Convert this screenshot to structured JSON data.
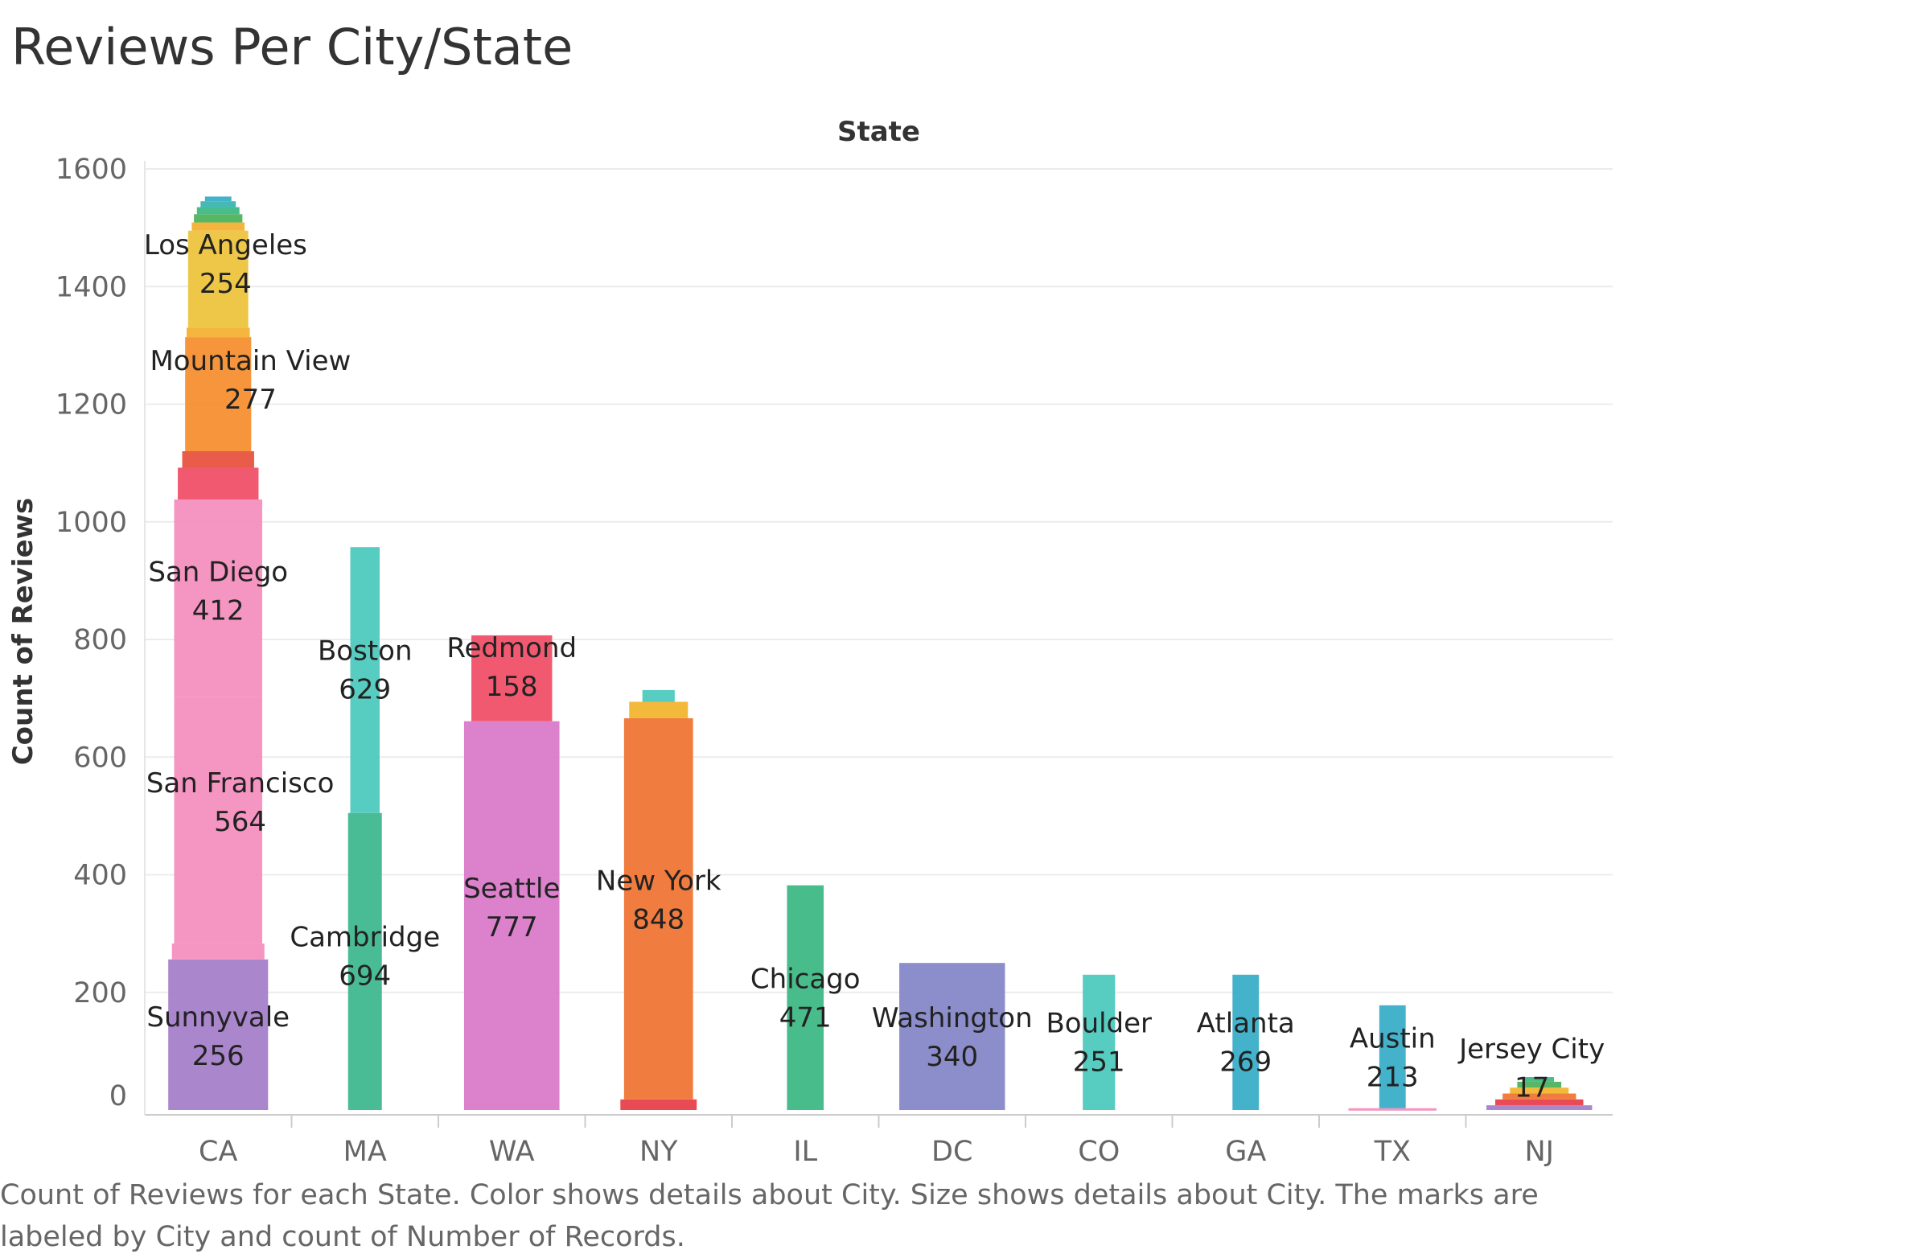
{
  "title": "Reviews Per City/State",
  "caption": "Count of Reviews for each State.  Color shows details about City.  Size shows details about City.  The marks are labeled by City and count of Number of Records.",
  "chart_data": {
    "type": "bar",
    "stacked": true,
    "column_header": "State",
    "ylabel": "Count of Reviews",
    "ylim": [
      0,
      1650
    ],
    "yticks": [
      0,
      200,
      400,
      600,
      800,
      1000,
      1200,
      1400,
      1600
    ],
    "grid": true,
    "categories": [
      "CA",
      "MA",
      "WA",
      "NY",
      "IL",
      "DC",
      "CO",
      "GA",
      "TX",
      "NJ"
    ],
    "segments": [
      {
        "state": "CA",
        "base": 0,
        "value": 256,
        "size": 0.68,
        "color": "#a57fc9",
        "city": "Sunnyvale",
        "count": "256"
      },
      {
        "state": "CA",
        "base": 256,
        "value": 27,
        "size": 0.63,
        "color": "#f48fbe",
        "city": "",
        "count": ""
      },
      {
        "state": "CA",
        "base": 283,
        "value": 419,
        "size": 0.6,
        "color": "#f48fbe",
        "city": "San Francisco",
        "count": "564"
      },
      {
        "state": "CA",
        "base": 702,
        "value": 336,
        "size": 0.6,
        "color": "#f48fbe",
        "city": "San Diego",
        "count": "412"
      },
      {
        "state": "CA",
        "base": 1038,
        "value": 54,
        "size": 0.55,
        "color": "#f05068",
        "city": "",
        "count": ""
      },
      {
        "state": "CA",
        "base": 1092,
        "value": 28,
        "size": 0.49,
        "color": "#e7533f",
        "city": "",
        "count": ""
      },
      {
        "state": "CA",
        "base": 1120,
        "value": 194,
        "size": 0.45,
        "color": "#f58f30",
        "city": "Mountain View",
        "count": "277"
      },
      {
        "state": "CA",
        "base": 1314,
        "value": 16,
        "size": 0.43,
        "color": "#f2b134",
        "city": "",
        "count": ""
      },
      {
        "state": "CA",
        "base": 1330,
        "value": 165,
        "size": 0.41,
        "color": "#edc43f",
        "city": "Los Angeles",
        "count": "254"
      },
      {
        "state": "CA",
        "base": 1495,
        "value": 14,
        "size": 0.36,
        "color": "#f2b134",
        "city": "",
        "count": ""
      },
      {
        "state": "CA",
        "base": 1509,
        "value": 14,
        "size": 0.33,
        "color": "#4fb35c",
        "city": "",
        "count": ""
      },
      {
        "state": "CA",
        "base": 1523,
        "value": 12,
        "size": 0.29,
        "color": "#3fb885",
        "city": "",
        "count": ""
      },
      {
        "state": "CA",
        "base": 1535,
        "value": 10,
        "size": 0.24,
        "color": "#3bb5b0",
        "city": "",
        "count": ""
      },
      {
        "state": "CA",
        "base": 1545,
        "value": 8,
        "size": 0.18,
        "color": "#3aaec8",
        "city": "",
        "count": ""
      },
      {
        "state": "MA",
        "base": 0,
        "value": 505,
        "size": 0.23,
        "color": "#3fb890",
        "city": "Cambridge",
        "count": "694"
      },
      {
        "state": "MA",
        "base": 505,
        "value": 452,
        "size": 0.2,
        "color": "#4ec9be",
        "city": "Boston",
        "count": "629"
      },
      {
        "state": "WA",
        "base": 0,
        "value": 661,
        "size": 0.65,
        "color": "#da7bc9",
        "city": "Seattle",
        "count": "777"
      },
      {
        "state": "WA",
        "base": 661,
        "value": 146,
        "size": 0.55,
        "color": "#f05068",
        "city": "Redmond",
        "count": "158"
      },
      {
        "state": "NY",
        "base": 0,
        "value": 18,
        "size": 0.52,
        "color": "#e8414b",
        "city": "",
        "count": ""
      },
      {
        "state": "NY",
        "base": 18,
        "value": 648,
        "size": 0.47,
        "color": "#f07535",
        "city": "New York",
        "count": "848"
      },
      {
        "state": "NY",
        "base": 666,
        "value": 28,
        "size": 0.4,
        "color": "#f2b52f",
        "city": "",
        "count": ""
      },
      {
        "state": "NY",
        "base": 694,
        "value": 20,
        "size": 0.22,
        "color": "#4ec9be",
        "city": "",
        "count": ""
      },
      {
        "state": "IL",
        "base": 0,
        "value": 382,
        "size": 0.25,
        "color": "#3fb885",
        "city": "Chicago",
        "count": "471"
      },
      {
        "state": "DC",
        "base": 0,
        "value": 250,
        "size": 0.72,
        "color": "#8687c8",
        "city": "Washington",
        "count": "340"
      },
      {
        "state": "CO",
        "base": 0,
        "value": 230,
        "size": 0.22,
        "color": "#4ec9be",
        "city": "Boulder",
        "count": "251"
      },
      {
        "state": "GA",
        "base": 0,
        "value": 230,
        "size": 0.18,
        "color": "#3aaec8",
        "city": "Atlanta",
        "count": "269"
      },
      {
        "state": "TX",
        "base": 0,
        "value": 3,
        "size": 0.6,
        "color": "#f48fbe",
        "city": "",
        "count": ""
      },
      {
        "state": "TX",
        "base": 3,
        "value": 175,
        "size": 0.18,
        "color": "#3aaec8",
        "city": "Austin",
        "count": "213"
      },
      {
        "state": "NJ",
        "base": 0,
        "value": 8,
        "size": 0.72,
        "color": "#a57fc9",
        "city": "",
        "count": ""
      },
      {
        "state": "NJ",
        "base": 8,
        "value": 10,
        "size": 0.6,
        "color": "#e8414b",
        "city": "",
        "count": ""
      },
      {
        "state": "NJ",
        "base": 18,
        "value": 10,
        "size": 0.5,
        "color": "#f07535",
        "city": "",
        "count": ""
      },
      {
        "state": "NJ",
        "base": 28,
        "value": 10,
        "size": 0.4,
        "color": "#f2b52f",
        "city": "",
        "count": ""
      },
      {
        "state": "NJ",
        "base": 38,
        "value": 10,
        "size": 0.3,
        "color": "#4fb35c",
        "city": "",
        "count": ""
      },
      {
        "state": "NJ",
        "base": 48,
        "value": 8,
        "size": 0.2,
        "color": "#3fb885",
        "city": "",
        "count": ""
      }
    ],
    "labels": [
      {
        "state": "CA",
        "city": "Los Angeles",
        "count": "254",
        "y": 1455,
        "dx": 0.05
      },
      {
        "state": "CA",
        "city": "Mountain View",
        "count": "277",
        "y": 1258,
        "dx": 0.22
      },
      {
        "state": "CA",
        "city": "San Diego",
        "count": "412",
        "y": 899,
        "dx": 0
      },
      {
        "state": "CA",
        "city": "San Francisco",
        "count": "564",
        "y": 540,
        "dx": 0.15
      },
      {
        "state": "CA",
        "city": "Sunnyvale",
        "count": "256",
        "y": 142,
        "dx": 0
      },
      {
        "state": "MA",
        "city": "Boston",
        "count": "629",
        "y": 765,
        "dx": 0
      },
      {
        "state": "MA",
        "city": "Cambridge",
        "count": "694",
        "y": 278,
        "dx": 0
      },
      {
        "state": "WA",
        "city": "Redmond",
        "count": "158",
        "y": 770,
        "dx": 0
      },
      {
        "state": "WA",
        "city": "Seattle",
        "count": "777",
        "y": 361,
        "dx": 0
      },
      {
        "state": "NY",
        "city": "New York",
        "count": "848",
        "y": 374,
        "dx": 0
      },
      {
        "state": "IL",
        "city": "Chicago",
        "count": "471",
        "y": 207,
        "dx": 0
      },
      {
        "state": "DC",
        "city": "Washington",
        "count": "340",
        "y": 141,
        "dx": 0
      },
      {
        "state": "CO",
        "city": "Boulder",
        "count": "251",
        "y": 132,
        "dx": 0
      },
      {
        "state": "GA",
        "city": "Atlanta",
        "count": "269",
        "y": 132,
        "dx": 0
      },
      {
        "state": "TX",
        "city": "Austin",
        "count": "213",
        "y": 106,
        "dx": 0
      },
      {
        "state": "NJ",
        "city": "Jersey City",
        "count": "17",
        "y": 88,
        "dx": -0.05
      }
    ]
  }
}
